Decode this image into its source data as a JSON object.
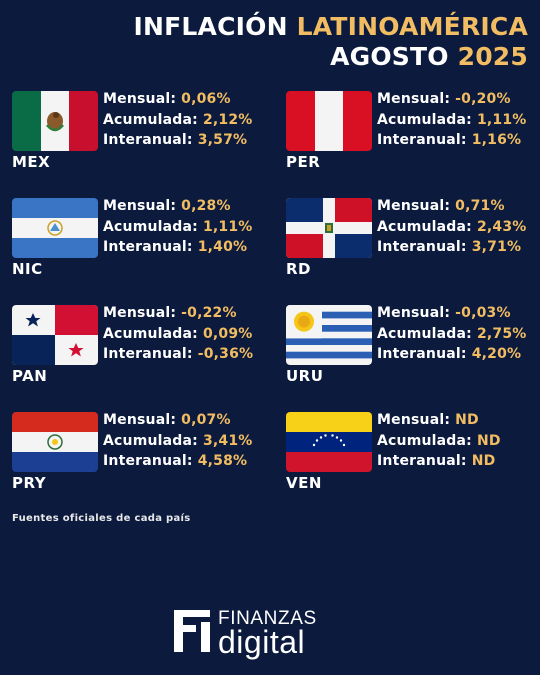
{
  "header": {
    "title_a": "INFLACIÓN",
    "title_b": "LATINOAMÉRICA",
    "month": "AGOSTO",
    "year": "2025"
  },
  "labels": {
    "monthly": "Mensual:",
    "accumulated": "Acumulada:",
    "annual": "Interanual:"
  },
  "countries": [
    {
      "code": "MEX",
      "flag": "mexico-flag",
      "monthly": "0,06%",
      "accumulated": "2,12%",
      "annual": "3,57%"
    },
    {
      "code": "PER",
      "flag": "peru-flag",
      "monthly": "-0,20%",
      "accumulated": "1,11%",
      "annual": "1,16%"
    },
    {
      "code": "NIC",
      "flag": "nicaragua-flag",
      "monthly": "0,28%",
      "accumulated": "1,11%",
      "annual": "1,40%"
    },
    {
      "code": "RD",
      "flag": "dominican-republic-flag",
      "monthly": "0,71%",
      "accumulated": "2,43%",
      "annual": "3,71%"
    },
    {
      "code": "PAN",
      "flag": "panama-flag",
      "monthly": "-0,22%",
      "accumulated": "0,09%",
      "annual": "-0,36%"
    },
    {
      "code": "URU",
      "flag": "uruguay-flag",
      "monthly": "-0,03%",
      "accumulated": "2,75%",
      "annual": "4,20%"
    },
    {
      "code": "PRY",
      "flag": "paraguay-flag",
      "monthly": "0,07%",
      "accumulated": "3,41%",
      "annual": "4,58%"
    },
    {
      "code": "VEN",
      "flag": "venezuela-flag",
      "monthly": "ND",
      "accumulated": "ND",
      "annual": "ND"
    }
  ],
  "footer": {
    "source": "Fuentes oficiales de cada país",
    "logo_top": "FINANZAS",
    "logo_bottom": "digital"
  },
  "colors": {
    "background": "#0b1a3d",
    "accent": "#f2bd62",
    "text": "#ffffff"
  }
}
